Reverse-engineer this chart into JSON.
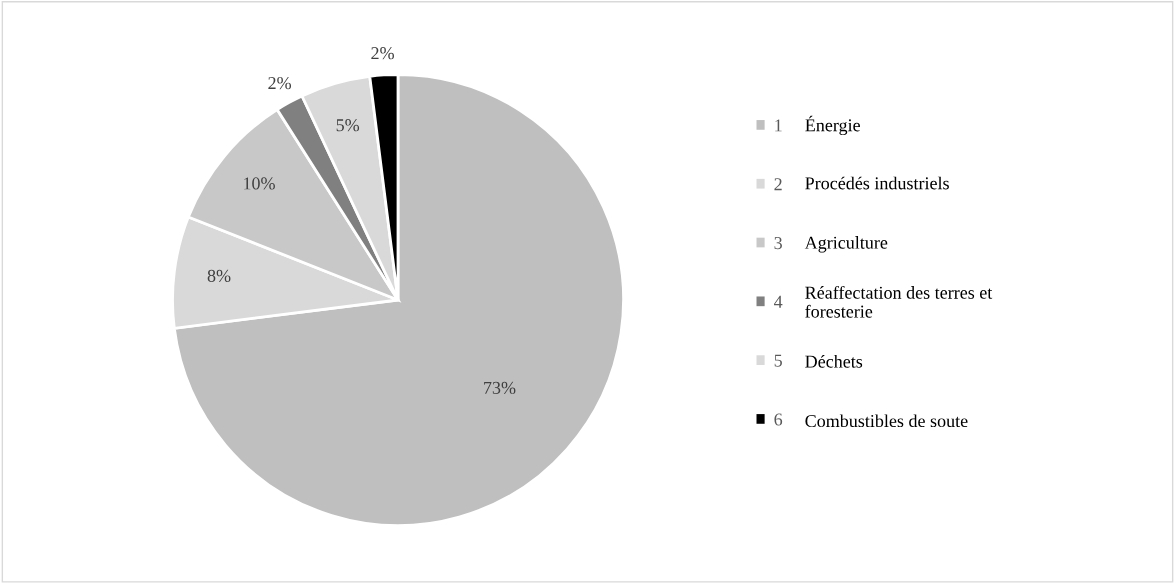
{
  "chart_data": {
    "type": "pie",
    "categories": [
      "1",
      "2",
      "3",
      "4",
      "5",
      "6"
    ],
    "values": [
      73,
      8,
      10,
      2,
      5,
      2
    ],
    "colors": [
      "#bfbfbf",
      "#d9d9d9",
      "#c8c8c8",
      "#808080",
      "#d9d9d9",
      "#000000"
    ],
    "value_labels": [
      "73%",
      "8%",
      "10%",
      "2%",
      "5%",
      "2%"
    ],
    "annotations": [
      "Énergie",
      "Procédés industriels",
      "Agriculture",
      "Réaffectation des terres et\nforesterie",
      "Déchets",
      "Combustibles de soute"
    ],
    "legend": "right"
  }
}
